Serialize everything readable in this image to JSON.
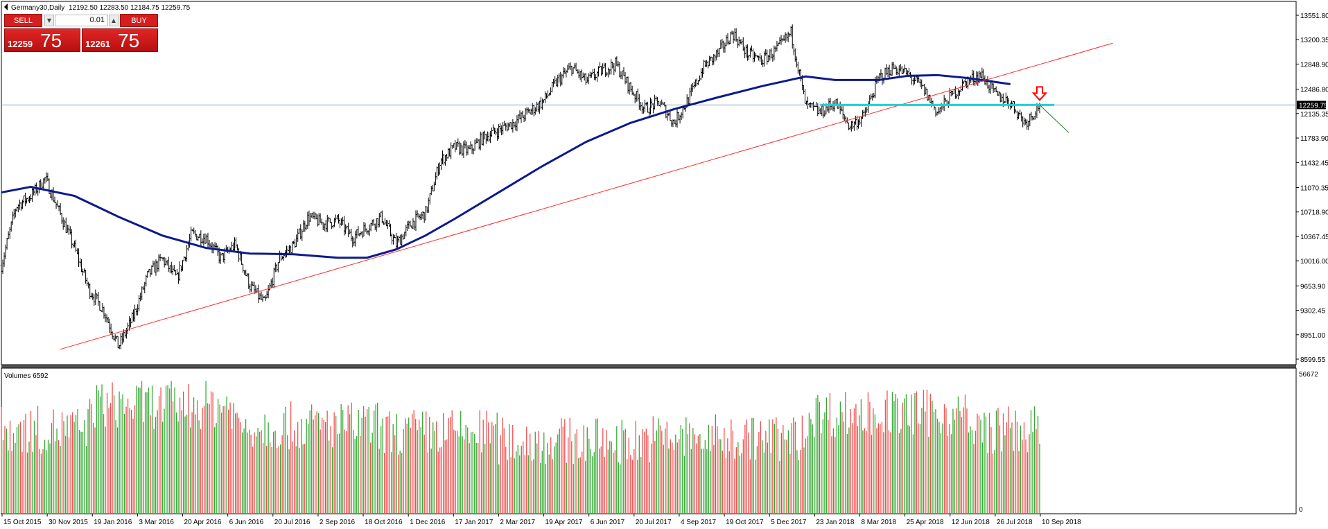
{
  "window": {
    "symbol_title": "Germany30,Daily",
    "ohlc": "12192.50 12283.50 12184.75 12259.75"
  },
  "trade_panel": {
    "sell_label": "SELL",
    "buy_label": "BUY",
    "lot": "0.01",
    "sell_big": "12259",
    "sell_small": "75",
    "buy_big": "12261",
    "buy_small": "75",
    "down_arrow": "▼",
    "up_arrow": "▲"
  },
  "colors": {
    "ma": "#0c1a8c",
    "trend": "#ff2a2a",
    "level": "#1fd2d2",
    "price_line": "#8aa0b8",
    "vol_up": "#35a835",
    "vol_down": "#f05050",
    "bar": "#000000",
    "arrow": "#ff0000",
    "green_line": "#1a7a1a"
  },
  "icons": {
    "signal_arrow": "down-arrow-icon",
    "title_marker": "triangle-icon"
  },
  "chart_data": [
    {
      "type": "line",
      "title": "Germany30,Daily",
      "subtitle": "12192.50 12283.50 12184.75 12259.75",
      "x_ticks": [
        "15 Oct 2015",
        "30 Nov 2015",
        "19 Jan 2016",
        "3 Mar 2016",
        "20 Apr 2016",
        "6 Jun 2016",
        "20 Jul 2016",
        "2 Sep 2016",
        "18 Oct 2016",
        "1 Dec 2016",
        "17 Jan 2017",
        "2 Mar 2017",
        "19 Apr 2017",
        "6 Jun 2017",
        "20 Jul 2017",
        "4 Sep 2017",
        "19 Oct 2017",
        "5 Dec 2017",
        "23 Jan 2018",
        "8 Mar 2018",
        "25 Apr 2018",
        "12 Jun 2018",
        "26 Jul 2018",
        "10 Sep 2018"
      ],
      "y_ticks": [
        "13551.80",
        "13200.35",
        "12848.90",
        "12486.80",
        "12135.35",
        "11783.90",
        "11432.45",
        "11070.35",
        "10718.90",
        "10367.45",
        "10016.00",
        "9653.90",
        "9302.45",
        "8951.00",
        "8599.55"
      ],
      "ylim": [
        8599.55,
        13551.8
      ],
      "current_price": 12259.75,
      "current_price_label": "12259.75",
      "grid": false,
      "close_points": [
        [
          0,
          9950
        ],
        [
          1,
          10800
        ],
        [
          2,
          10950
        ],
        [
          3,
          11200
        ],
        [
          4,
          10700
        ],
        [
          5,
          10200
        ],
        [
          6,
          9600
        ],
        [
          7,
          9300
        ],
        [
          8,
          8780
        ],
        [
          9,
          9200
        ],
        [
          10,
          9800
        ],
        [
          11,
          10050
        ],
        [
          12,
          9750
        ],
        [
          13,
          10400
        ],
        [
          14,
          10350
        ],
        [
          15,
          10050
        ],
        [
          16,
          10250
        ],
        [
          17,
          9650
        ],
        [
          18,
          9400
        ],
        [
          19,
          10050
        ],
        [
          20,
          10250
        ],
        [
          21,
          10650
        ],
        [
          22,
          10550
        ],
        [
          23,
          10600
        ],
        [
          24,
          10350
        ],
        [
          25,
          10500
        ],
        [
          26,
          10650
        ],
        [
          27,
          10250
        ],
        [
          28,
          10550
        ],
        [
          29,
          10700
        ],
        [
          30,
          11450
        ],
        [
          31,
          11650
        ],
        [
          32,
          11600
        ],
        [
          33,
          11800
        ],
        [
          34,
          11900
        ],
        [
          35,
          12000
        ],
        [
          36,
          12150
        ],
        [
          37,
          12300
        ],
        [
          38,
          12600
        ],
        [
          39,
          12800
        ],
        [
          40,
          12600
        ],
        [
          41,
          12750
        ],
        [
          42,
          12850
        ],
        [
          43,
          12500
        ],
        [
          44,
          12200
        ],
        [
          45,
          12300
        ],
        [
          46,
          12000
        ],
        [
          47,
          12350
        ],
        [
          48,
          12800
        ],
        [
          49,
          13000
        ],
        [
          50,
          13300
        ],
        [
          51,
          13000
        ],
        [
          52,
          12900
        ],
        [
          53,
          13050
        ],
        [
          54,
          13300
        ],
        [
          55,
          12250
        ],
        [
          56,
          12150
        ],
        [
          57,
          12300
        ],
        [
          58,
          11950
        ],
        [
          59,
          12100
        ],
        [
          60,
          12650
        ],
        [
          61,
          12800
        ],
        [
          62,
          12700
        ],
        [
          63,
          12500
        ],
        [
          64,
          12150
        ],
        [
          65,
          12400
        ],
        [
          66,
          12600
        ],
        [
          67,
          12700
        ],
        [
          68,
          12400
        ],
        [
          69,
          12300
        ],
        [
          70,
          12000
        ],
        [
          71,
          12259.75
        ]
      ],
      "moving_average": [
        [
          0,
          11000
        ],
        [
          2,
          11080
        ],
        [
          5,
          10950
        ],
        [
          8,
          10650
        ],
        [
          11,
          10380
        ],
        [
          14,
          10200
        ],
        [
          17,
          10120
        ],
        [
          20,
          10110
        ],
        [
          23,
          10060
        ],
        [
          25,
          10060
        ],
        [
          27,
          10180
        ],
        [
          29,
          10380
        ],
        [
          31,
          10620
        ],
        [
          34,
          11000
        ],
        [
          37,
          11380
        ],
        [
          40,
          11730
        ],
        [
          43,
          12000
        ],
        [
          46,
          12200
        ],
        [
          49,
          12370
        ],
        [
          52,
          12530
        ],
        [
          55,
          12670
        ],
        [
          57,
          12620
        ],
        [
          60,
          12620
        ],
        [
          62,
          12680
        ],
        [
          64,
          12690
        ],
        [
          66,
          12650
        ],
        [
          68,
          12590
        ],
        [
          69,
          12560
        ]
      ],
      "trendline": {
        "from": [
          4,
          8740
        ],
        "to": [
          76,
          13150
        ]
      },
      "horizontal_level": {
        "from": [
          56,
          12260
        ],
        "to": [
          72,
          12260
        ],
        "value": 12260
      },
      "projection": {
        "from": [
          71,
          12259.75
        ],
        "to": [
          73,
          11860
        ]
      },
      "signal_arrow": {
        "x": 71,
        "y": 12560
      }
    },
    {
      "type": "bar",
      "title": "Volumes 6592",
      "ylim": [
        0,
        56672
      ],
      "y_ticks": [
        "56672",
        "0"
      ],
      "values_pattern": [
        {
          "range": [
            0,
            6
          ],
          "level": 0.6
        },
        {
          "range": [
            6,
            16
          ],
          "level": 0.78
        },
        {
          "range": [
            16,
            26
          ],
          "level": 0.63
        },
        {
          "range": [
            26,
            34
          ],
          "level": 0.58
        },
        {
          "range": [
            34,
            44
          ],
          "level": 0.52
        },
        {
          "range": [
            44,
            55
          ],
          "level": 0.54
        },
        {
          "range": [
            55,
            66
          ],
          "level": 0.72
        },
        {
          "range": [
            66,
            71
          ],
          "level": 0.6
        }
      ]
    }
  ]
}
